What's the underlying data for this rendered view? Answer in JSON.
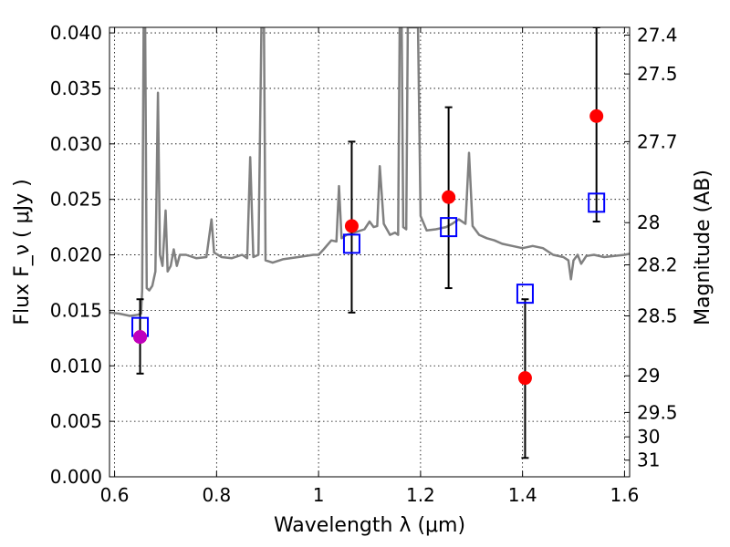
{
  "chart_data": {
    "type": "scatter",
    "xlabel": "Wavelength  λ (μm)",
    "ylabel": "Flux  F_ν  ( μJy )",
    "ylabel_right": "Magnitude (AB)",
    "xlim": [
      0.59,
      1.61
    ],
    "ylim": [
      0.0,
      0.0405
    ],
    "grid": true,
    "x_ticks": [
      0.6,
      0.8,
      1.0,
      1.2,
      1.4,
      1.6
    ],
    "x_tick_labels": [
      "0.6",
      "0.8",
      "1",
      "1.2",
      "1.4",
      "1.6"
    ],
    "y_ticks": [
      0.0,
      0.005,
      0.01,
      0.015,
      0.02,
      0.025,
      0.03,
      0.035,
      0.04
    ],
    "y_tick_labels": [
      "0.000",
      "0.005",
      "0.010",
      "0.015",
      "0.020",
      "0.025",
      "0.030",
      "0.035",
      "0.040"
    ],
    "right_axis": {
      "ticks": [
        {
          "label": "27.4",
          "flux": 0.0398
        },
        {
          "label": "27.5",
          "flux": 0.0363
        },
        {
          "label": "27.7",
          "flux": 0.0302
        },
        {
          "label": "28",
          "flux": 0.0229
        },
        {
          "label": "28.2",
          "flux": 0.0191
        },
        {
          "label": "28.5",
          "flux": 0.0145
        },
        {
          "label": "29",
          "flux": 0.0091
        },
        {
          "label": "29.5",
          "flux": 0.0058
        },
        {
          "label": "30",
          "flux": 0.0036
        },
        {
          "label": "31",
          "flux": 0.0015
        }
      ]
    },
    "series": [
      {
        "kind": "spectrum-line",
        "color": "#808080",
        "points": [
          [
            0.59,
            0.0148
          ],
          [
            0.61,
            0.0147
          ],
          [
            0.63,
            0.0145
          ],
          [
            0.645,
            0.0146
          ],
          [
            0.652,
            0.0147
          ],
          [
            0.654,
            0.0168
          ],
          [
            0.657,
            0.0405
          ],
          [
            0.66,
            0.0405
          ],
          [
            0.663,
            0.017
          ],
          [
            0.668,
            0.0168
          ],
          [
            0.674,
            0.0172
          ],
          [
            0.68,
            0.0185
          ],
          [
            0.685,
            0.0346
          ],
          [
            0.689,
            0.02
          ],
          [
            0.694,
            0.019
          ],
          [
            0.7,
            0.024
          ],
          [
            0.704,
            0.0185
          ],
          [
            0.71,
            0.019
          ],
          [
            0.716,
            0.0205
          ],
          [
            0.722,
            0.019
          ],
          [
            0.728,
            0.02
          ],
          [
            0.74,
            0.02
          ],
          [
            0.76,
            0.0197
          ],
          [
            0.78,
            0.0198
          ],
          [
            0.79,
            0.0232
          ],
          [
            0.795,
            0.0202
          ],
          [
            0.81,
            0.0198
          ],
          [
            0.83,
            0.0197
          ],
          [
            0.85,
            0.02
          ],
          [
            0.86,
            0.0197
          ],
          [
            0.866,
            0.0288
          ],
          [
            0.872,
            0.0198
          ],
          [
            0.882,
            0.02
          ],
          [
            0.888,
            0.0405
          ],
          [
            0.893,
            0.0405
          ],
          [
            0.896,
            0.0195
          ],
          [
            0.91,
            0.0193
          ],
          [
            0.93,
            0.0196
          ],
          [
            0.96,
            0.0198
          ],
          [
            0.99,
            0.02
          ],
          [
            1.0,
            0.02
          ],
          [
            1.01,
            0.0205
          ],
          [
            1.025,
            0.0213
          ],
          [
            1.035,
            0.0212
          ],
          [
            1.04,
            0.0262
          ],
          [
            1.045,
            0.0215
          ],
          [
            1.055,
            0.0218
          ],
          [
            1.07,
            0.022
          ],
          [
            1.09,
            0.0223
          ],
          [
            1.1,
            0.023
          ],
          [
            1.108,
            0.0225
          ],
          [
            1.115,
            0.0226
          ],
          [
            1.12,
            0.028
          ],
          [
            1.128,
            0.0228
          ],
          [
            1.14,
            0.0218
          ],
          [
            1.15,
            0.022
          ],
          [
            1.156,
            0.0218
          ],
          [
            1.159,
            0.0405
          ],
          [
            1.163,
            0.0405
          ],
          [
            1.166,
            0.0225
          ],
          [
            1.172,
            0.0223
          ],
          [
            1.175,
            0.0405
          ],
          [
            1.18,
            0.0405
          ],
          [
            1.186,
            0.0405
          ],
          [
            1.195,
            0.0405
          ],
          [
            1.2,
            0.0235
          ],
          [
            1.212,
            0.0222
          ],
          [
            1.23,
            0.0223
          ],
          [
            1.25,
            0.0225
          ],
          [
            1.262,
            0.0228
          ],
          [
            1.275,
            0.0232
          ],
          [
            1.288,
            0.0228
          ],
          [
            1.295,
            0.0292
          ],
          [
            1.302,
            0.0226
          ],
          [
            1.315,
            0.0218
          ],
          [
            1.33,
            0.0215
          ],
          [
            1.345,
            0.0213
          ],
          [
            1.36,
            0.021
          ],
          [
            1.38,
            0.0208
          ],
          [
            1.4,
            0.0206
          ],
          [
            1.42,
            0.0208
          ],
          [
            1.44,
            0.0206
          ],
          [
            1.46,
            0.02
          ],
          [
            1.48,
            0.0198
          ],
          [
            1.49,
            0.0195
          ],
          [
            1.495,
            0.0178
          ],
          [
            1.5,
            0.0195
          ],
          [
            1.508,
            0.02
          ],
          [
            1.515,
            0.0192
          ],
          [
            1.525,
            0.0199
          ],
          [
            1.54,
            0.02
          ],
          [
            1.56,
            0.0198
          ],
          [
            1.58,
            0.0199
          ],
          [
            1.6,
            0.02
          ],
          [
            1.61,
            0.0201
          ]
        ]
      },
      {
        "kind": "observed",
        "marker": "circle",
        "color": "#ff0000",
        "points": [
          {
            "x": 0.65,
            "y": 0.0126,
            "yerr_low": 0.0093,
            "yerr_high": 0.016
          },
          {
            "x": 1.065,
            "y": 0.0226,
            "yerr_low": 0.0148,
            "yerr_high": 0.0302
          },
          {
            "x": 1.255,
            "y": 0.0252,
            "yerr_low": 0.017,
            "yerr_high": 0.0333
          },
          {
            "x": 1.405,
            "y": 0.0089,
            "yerr_low": 0.0017,
            "yerr_high": 0.016
          },
          {
            "x": 1.545,
            "y": 0.0325,
            "yerr_low": 0.023,
            "yerr_high": 0.0405
          }
        ]
      },
      {
        "kind": "model",
        "marker": "square",
        "color": "#0000ff",
        "points": [
          {
            "x": 0.65,
            "y": 0.0135
          },
          {
            "x": 1.065,
            "y": 0.021
          },
          {
            "x": 1.255,
            "y": 0.0225
          },
          {
            "x": 1.405,
            "y": 0.0165
          },
          {
            "x": 1.545,
            "y": 0.0247
          }
        ]
      },
      {
        "kind": "overlap",
        "marker": "circle",
        "color": "#bf00bf",
        "points": [
          {
            "x": 0.65,
            "y": 0.0126
          }
        ]
      }
    ]
  }
}
